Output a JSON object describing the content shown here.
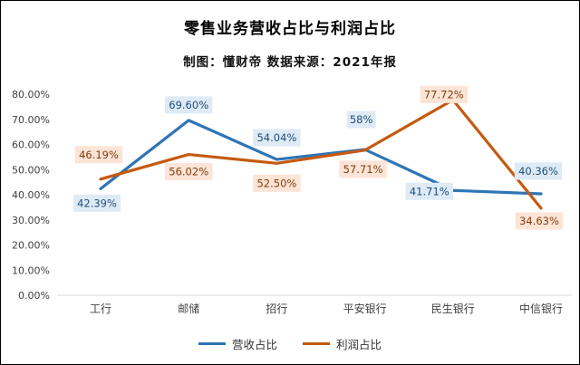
{
  "title": "零售业务营收占比与利润占比",
  "subtitle": "制图：懂财帝  数据来源：2021年报",
  "chart_data": {
    "type": "line",
    "title": "零售业务营收占比与利润占比",
    "subtitle": "制图：懂财帝  数据来源：2021年报",
    "categories": [
      "工行",
      "邮储",
      "招行",
      "平安银行",
      "民生银行",
      "中信银行"
    ],
    "series": [
      {
        "name": "营收占比",
        "color": "#2E75B6",
        "values": [
          42.39,
          69.6,
          54.04,
          58,
          41.71,
          40.36
        ],
        "labels": [
          "42.39%",
          "69.60%",
          "54.04%",
          "58%",
          "41.71%",
          "40.36%"
        ],
        "label_bg": "#DEEBF7",
        "label_color": "#1F4E79",
        "label_offsets": [
          [
            -4,
            16
          ],
          [
            0,
            -17
          ],
          [
            0,
            -24
          ],
          [
            -4,
            -33
          ],
          [
            -26,
            1
          ],
          [
            -3,
            -25
          ]
        ]
      },
      {
        "name": "利润占比",
        "color": "#C55A11",
        "values": [
          46.19,
          56.02,
          52.5,
          57.71,
          77.72,
          34.63
        ],
        "labels": [
          "46.19%",
          "56.02%",
          "52.50%",
          "57.71%",
          "77.72%",
          "34.63%"
        ],
        "label_bg": "#FCE4D6",
        "label_color": "#843C0C",
        "label_offsets": [
          [
            -2,
            -27
          ],
          [
            0,
            19
          ],
          [
            0,
            22
          ],
          [
            -2,
            21
          ],
          [
            -10,
            -6
          ],
          [
            -2,
            14
          ]
        ]
      }
    ],
    "y_axis": {
      "min": 0,
      "max": 80,
      "step": 10,
      "tick_labels": [
        "0.00%",
        "10.00%",
        "20.00%",
        "30.00%",
        "40.00%",
        "50.00%",
        "60.00%",
        "70.00%",
        "80.00%"
      ]
    },
    "legend": [
      "营收占比",
      "利润占比"
    ],
    "legend_position": "bottom",
    "grid": false
  }
}
